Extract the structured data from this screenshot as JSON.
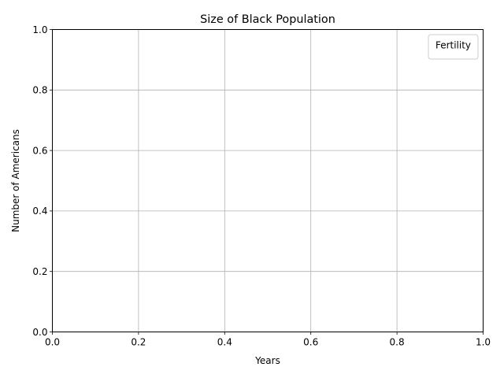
{
  "chart_data": {
    "type": "line",
    "title": "Size of Black Population",
    "xlabel": "Years",
    "ylabel": "Number of Americans",
    "xlim": [
      0.0,
      1.0
    ],
    "ylim": [
      0.0,
      1.0
    ],
    "x_ticks": [
      "0.0",
      "0.2",
      "0.4",
      "0.6",
      "0.8",
      "1.0"
    ],
    "y_ticks": [
      "0.0",
      "0.2",
      "0.4",
      "0.6",
      "0.8",
      "1.0"
    ],
    "grid": true,
    "legend": {
      "title": "Fertility",
      "placement": "top-right",
      "entries": []
    },
    "series": []
  },
  "colors": {
    "grid": "#b0b0b0",
    "axes": "#000000",
    "background": "#ffffff",
    "legend_border": "#cccccc"
  }
}
